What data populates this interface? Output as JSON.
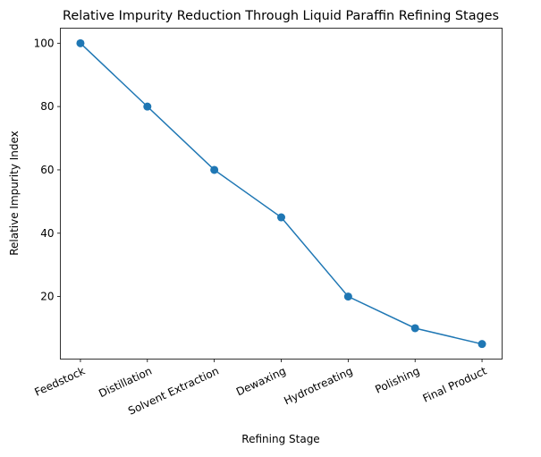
{
  "chart_data": {
    "type": "line",
    "title": "Relative Impurity Reduction Through Liquid Paraffin Refining Stages",
    "xlabel": "Refining Stage",
    "ylabel": "Relative Impurity Index",
    "categories": [
      "Feedstock",
      "Distillation",
      "Solvent Extraction",
      "Dewaxing",
      "Hydrotreating",
      "Polishing",
      "Final Product"
    ],
    "values": [
      100,
      80,
      60,
      45,
      20,
      10,
      5
    ],
    "ylim": [
      0.25,
      104.75
    ],
    "yticks": [
      20,
      40,
      60,
      80,
      100
    ],
    "grid": false,
    "marker": "circle",
    "color": "#1f77b4"
  }
}
